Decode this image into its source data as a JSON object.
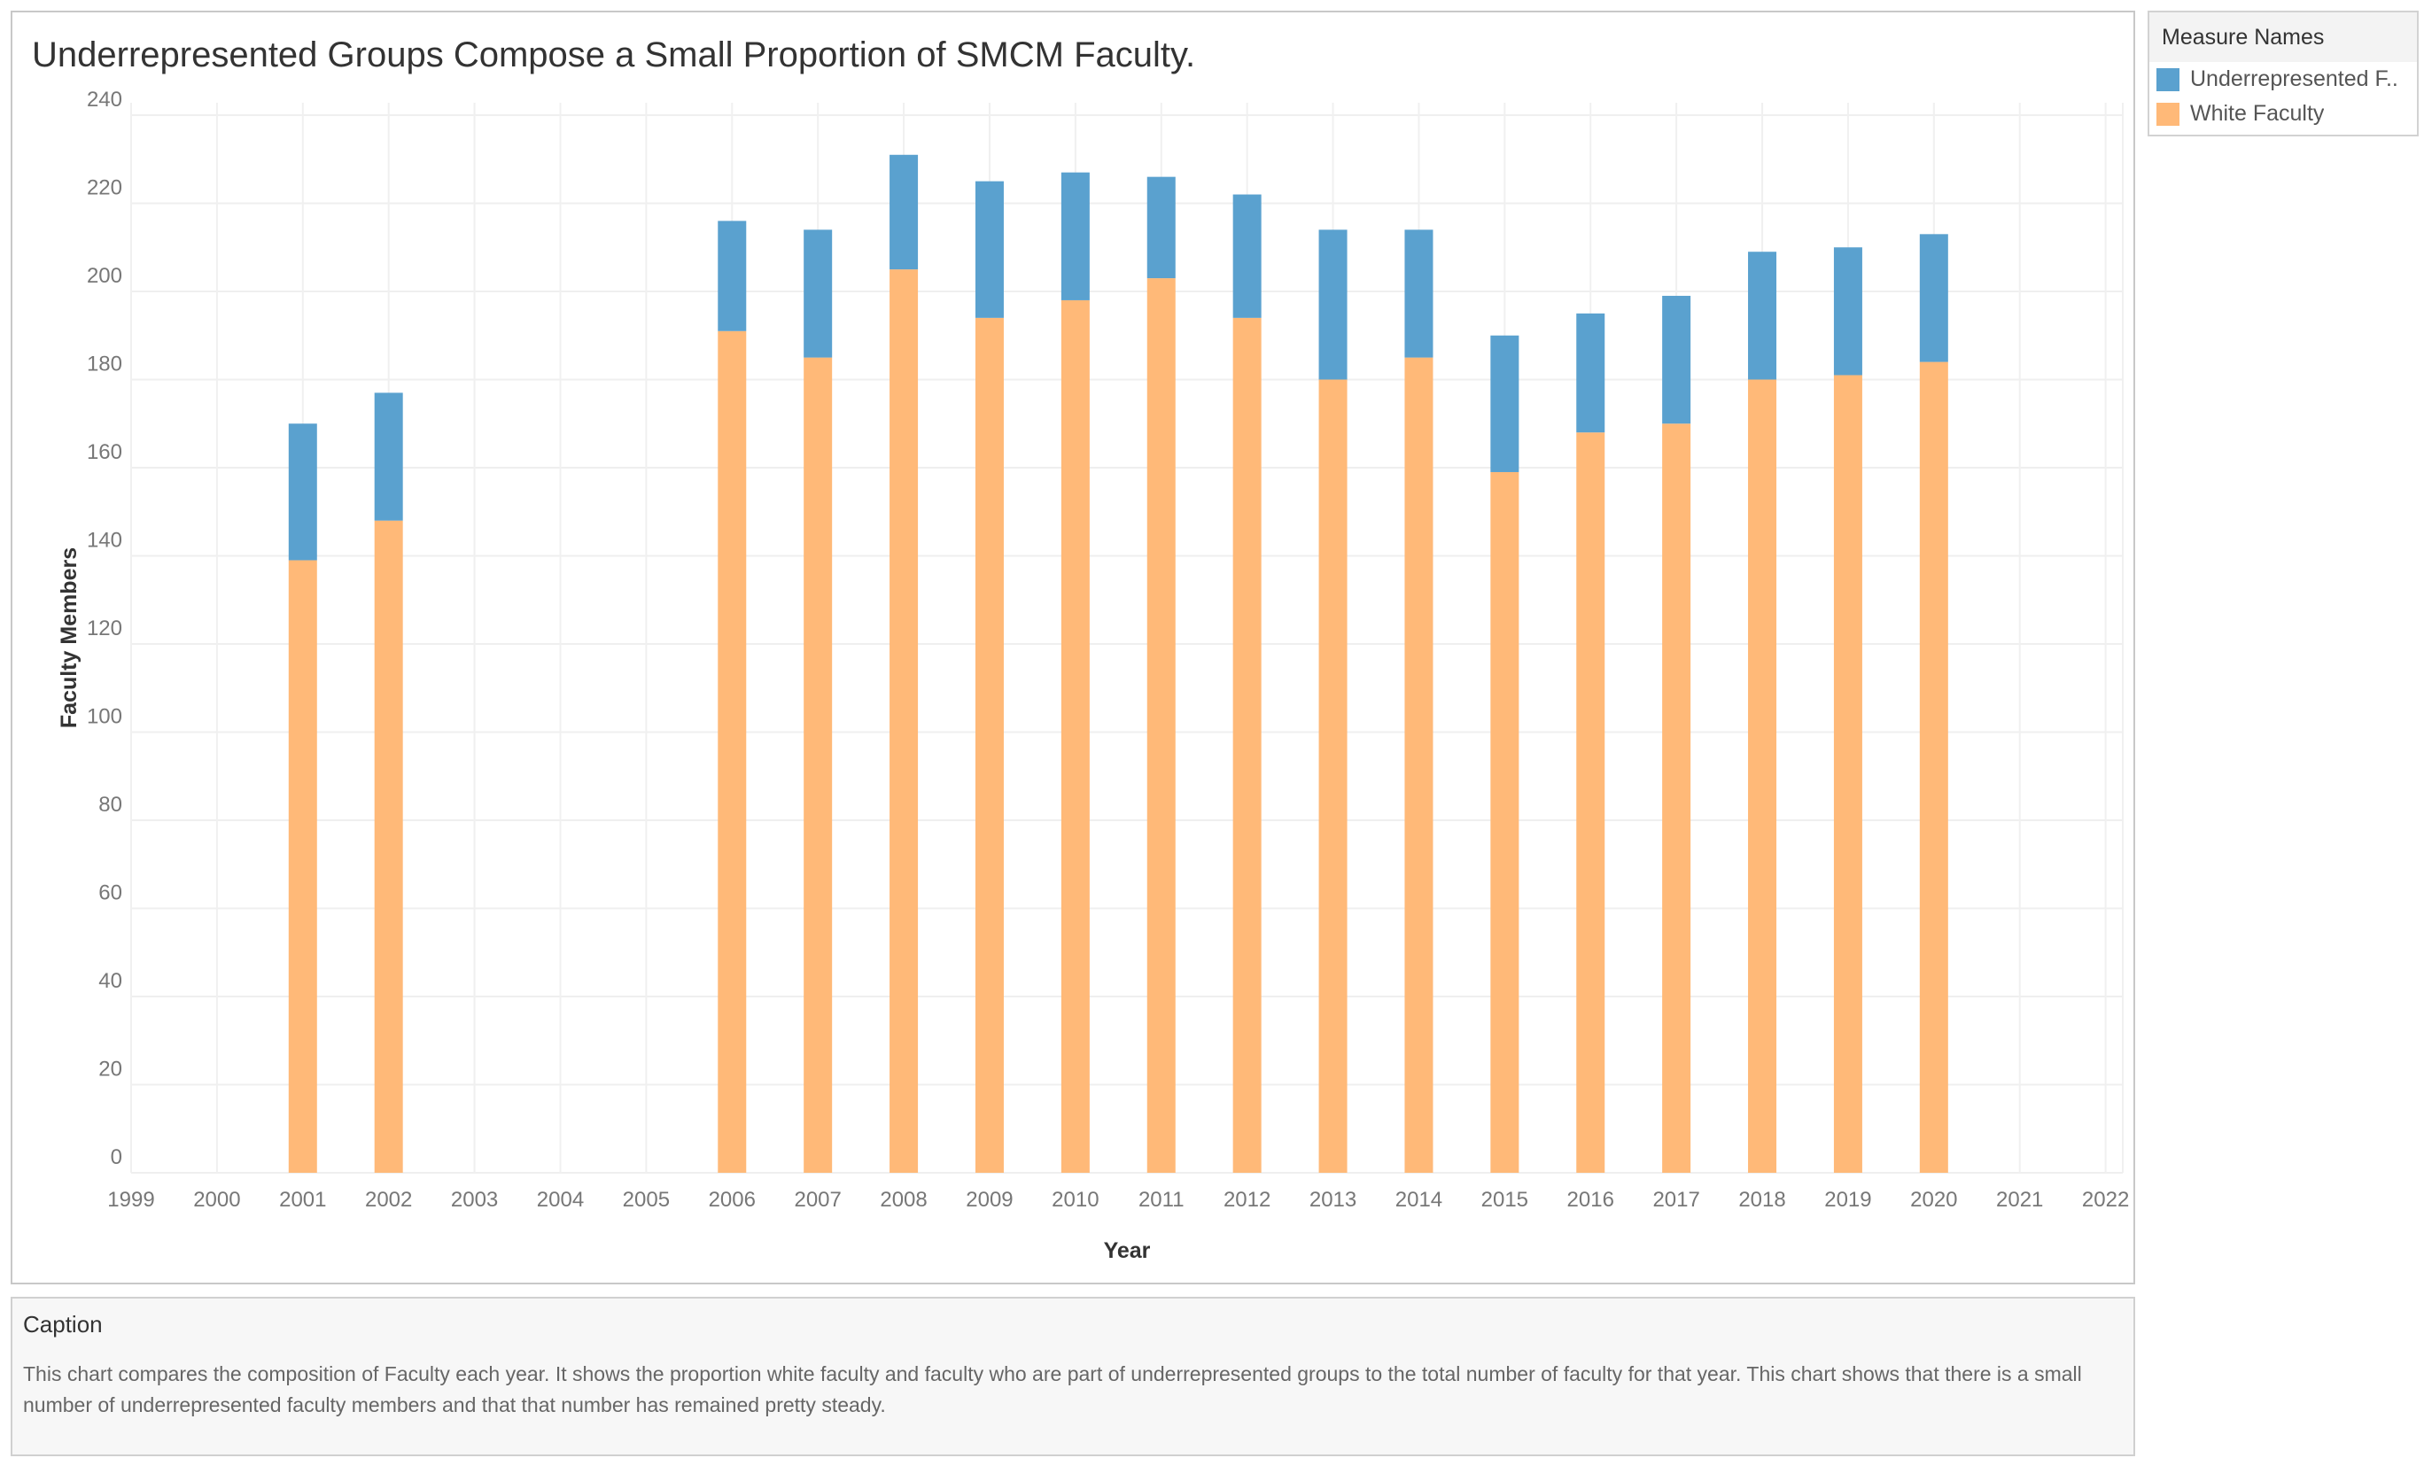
{
  "chart_data": {
    "type": "bar",
    "stacked": true,
    "title": "Underrepresented Groups Compose a Small Proportion of SMCM Faculty.",
    "xlabel": "Year",
    "ylabel": "Faculty Members",
    "ylim": [
      0,
      240
    ],
    "yticks": [
      0,
      20,
      40,
      60,
      80,
      100,
      120,
      140,
      160,
      180,
      200,
      220,
      240
    ],
    "categories": [
      "1999",
      "2000",
      "2001",
      "2002",
      "2003",
      "2004",
      "2005",
      "2006",
      "2007",
      "2008",
      "2009",
      "2010",
      "2011",
      "2012",
      "2013",
      "2014",
      "2015",
      "2016",
      "2017",
      "2018",
      "2019",
      "2020",
      "2021",
      "2022"
    ],
    "series": [
      {
        "name": "White Faculty",
        "color": "#ffb978",
        "values": [
          null,
          null,
          139,
          148,
          null,
          null,
          null,
          191,
          185,
          205,
          194,
          198,
          203,
          194,
          180,
          185,
          159,
          168,
          170,
          180,
          181,
          184,
          null,
          null
        ]
      },
      {
        "name": "Underrepresented F..",
        "color": "#5aa1cf",
        "values": [
          null,
          null,
          31,
          29,
          null,
          null,
          null,
          25,
          29,
          26,
          31,
          29,
          23,
          28,
          34,
          29,
          31,
          27,
          29,
          29,
          29,
          29,
          null,
          null
        ]
      }
    ],
    "grid": true,
    "legend_position": "right"
  },
  "legend": {
    "header": "Measure Names",
    "items": [
      {
        "label": "Underrepresented F..",
        "color": "#5aa1cf"
      },
      {
        "label": "White Faculty",
        "color": "#ffb978"
      }
    ]
  },
  "caption": {
    "title": "Caption",
    "text": "This chart compares the composition of Faculty each year. It shows the proportion white faculty and faculty who are part of underrepresented groups to the total number of faculty for that year. This chart shows that there is a small number of underrepresented faculty members and that that number has remained pretty steady."
  }
}
